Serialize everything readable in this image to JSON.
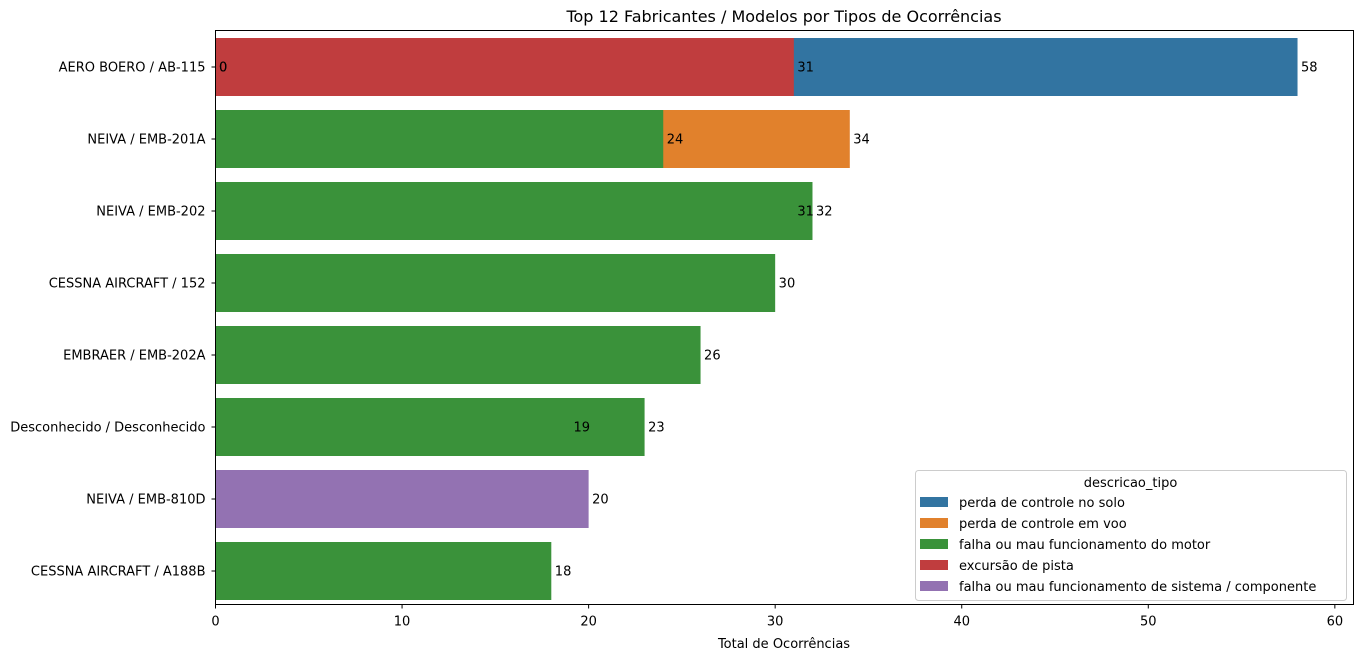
{
  "chart_data": {
    "type": "bar",
    "orientation": "horizontal",
    "title": "Top 12 Fabricantes / Modelos por Tipos de Ocorrências",
    "xlabel": "Total de Ocorrências",
    "ylabel": "",
    "xlim": [
      0,
      61
    ],
    "xticks": [
      0,
      10,
      20,
      30,
      40,
      50,
      60
    ],
    "grid": false,
    "legend": {
      "title": "descricao_tipo",
      "placement": "lower-right"
    },
    "categories": [
      "AERO BOERO / AB-115",
      "NEIVA / EMB-201A",
      "NEIVA / EMB-202",
      "CESSNA AIRCRAFT / 152",
      "EMBRAER / EMB-202A",
      "Desconhecido / Desconhecido",
      "NEIVA / EMB-810D",
      "CESSNA AIRCRAFT / A188B"
    ],
    "series": [
      {
        "name": "perda de controle no solo",
        "color": "#3274a1",
        "values": [
          58,
          null,
          null,
          null,
          null,
          null,
          null,
          null
        ]
      },
      {
        "name": "perda de controle em voo",
        "color": "#e1812c",
        "values": [
          null,
          34,
          null,
          null,
          null,
          null,
          null,
          null
        ]
      },
      {
        "name": "falha ou mau funcionamento do motor",
        "color": "#3a923a",
        "values": [
          null,
          24,
          32,
          30,
          26,
          23,
          null,
          18
        ]
      },
      {
        "name": "excursão de pista",
        "color": "#c03d3e",
        "values": [
          31,
          null,
          null,
          null,
          null,
          null,
          null,
          null
        ]
      },
      {
        "name": "falha ou mau funcionamento de sistema / componente",
        "color": "#9372b2",
        "values": [
          null,
          null,
          null,
          null,
          null,
          null,
          20,
          null
        ]
      }
    ],
    "data_labels": [
      {
        "category": "AERO BOERO / AB-115",
        "value": 0,
        "text": "0"
      },
      {
        "category": "AERO BOERO / AB-115",
        "value": 0,
        "text": "0"
      },
      {
        "category": "AERO BOERO / AB-115",
        "value": 31,
        "text": "31"
      },
      {
        "category": "AERO BOERO / AB-115",
        "value": 58,
        "text": "58"
      },
      {
        "category": "NEIVA / EMB-201A",
        "value": 24,
        "text": "24"
      },
      {
        "category": "NEIVA / EMB-201A",
        "value": 34,
        "text": "34"
      },
      {
        "category": "NEIVA / EMB-202",
        "value": 31,
        "text": "31"
      },
      {
        "category": "NEIVA / EMB-202",
        "value": 32,
        "text": "32"
      },
      {
        "category": "CESSNA AIRCRAFT / 152",
        "value": 30,
        "text": "30"
      },
      {
        "category": "EMBRAER / EMB-202A",
        "value": 26,
        "text": "26"
      },
      {
        "category": "Desconhecido / Desconhecido",
        "value": 19,
        "text": "19"
      },
      {
        "category": "Desconhecido / Desconhecido",
        "value": 23,
        "text": "23"
      },
      {
        "category": "NEIVA / EMB-810D",
        "value": 20,
        "text": "20"
      },
      {
        "category": "CESSNA AIRCRAFT / A188B",
        "value": 18,
        "text": "18"
      }
    ]
  }
}
